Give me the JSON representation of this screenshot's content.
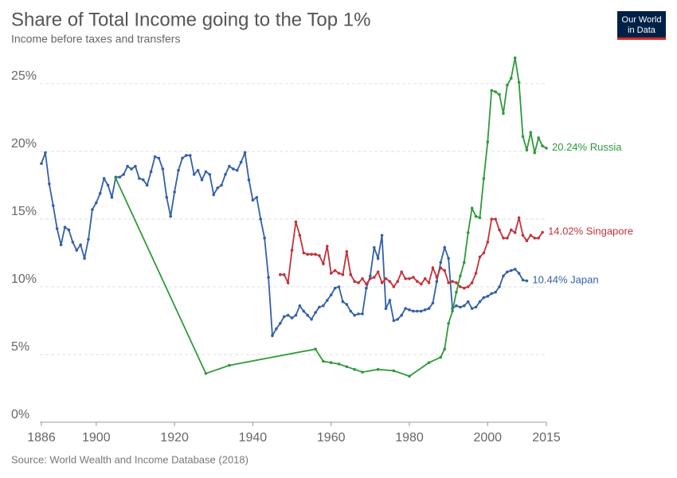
{
  "chart_data": {
    "type": "line",
    "title": "Share of Total Income going to the Top 1%",
    "subtitle": "Income before taxes and transfers",
    "source": "Source: World Wealth and Income Database (2018)",
    "logo": [
      "Our World",
      "in Data"
    ],
    "xlim": [
      1886,
      2015
    ],
    "xticks": [
      1886,
      1900,
      1920,
      1940,
      1960,
      1980,
      2000,
      2015
    ],
    "ylim": [
      0,
      27
    ],
    "yticks": [
      {
        "value": 0,
        "label": "0%"
      },
      {
        "value": 5,
        "label": "5%"
      },
      {
        "value": 10,
        "label": "10%"
      },
      {
        "value": 15,
        "label": "15%"
      },
      {
        "value": 20,
        "label": "20%"
      },
      {
        "value": 25,
        "label": "25%"
      }
    ],
    "grid": true,
    "series": [
      {
        "name": "Japan",
        "color": "#3360a9",
        "x": [
          1886,
          1887,
          1888,
          1889,
          1890,
          1891,
          1892,
          1893,
          1894,
          1895,
          1896,
          1897,
          1898,
          1899,
          1900,
          1901,
          1902,
          1903,
          1904,
          1905,
          1906,
          1907,
          1908,
          1909,
          1910,
          1911,
          1912,
          1913,
          1914,
          1915,
          1916,
          1917,
          1918,
          1919,
          1920,
          1921,
          1922,
          1923,
          1924,
          1925,
          1926,
          1927,
          1928,
          1929,
          1930,
          1931,
          1932,
          1933,
          1934,
          1935,
          1936,
          1937,
          1938,
          1939,
          1940,
          1941,
          1942,
          1943,
          1944,
          1945,
          1946,
          1947,
          1948,
          1949,
          1950,
          1951,
          1952,
          1953,
          1954,
          1955,
          1956,
          1957,
          1958,
          1959,
          1960,
          1961,
          1962,
          1963,
          1964,
          1965,
          1966,
          1967,
          1968,
          1969,
          1970,
          1971,
          1972,
          1973,
          1974,
          1975,
          1976,
          1977,
          1978,
          1979,
          1980,
          1981,
          1982,
          1983,
          1984,
          1985,
          1986,
          1987,
          1988,
          1989,
          1990,
          1991,
          1992,
          1993,
          1994,
          1995,
          1996,
          1997,
          1998,
          1999,
          2000,
          2001,
          2002,
          2003,
          2004,
          2005,
          2006,
          2007,
          2008,
          2009,
          2010
        ],
        "values": [
          19.1,
          19.9,
          17.6,
          16.0,
          14.3,
          13.1,
          14.4,
          14.2,
          13.3,
          12.7,
          13.1,
          12.1,
          13.5,
          15.7,
          16.2,
          16.9,
          18.0,
          17.5,
          16.6,
          18.1,
          18.1,
          18.3,
          18.9,
          18.7,
          18.9,
          18.0,
          17.9,
          17.5,
          18.5,
          19.6,
          19.5,
          18.7,
          16.6,
          15.2,
          17.0,
          18.6,
          19.5,
          19.7,
          19.7,
          18.3,
          18.6,
          17.9,
          18.5,
          18.3,
          16.8,
          17.3,
          17.5,
          18.3,
          18.9,
          18.7,
          18.6,
          19.2,
          19.9,
          17.9,
          16.4,
          16.6,
          15.0,
          13.6,
          10.7,
          6.4,
          6.9,
          7.3,
          7.8,
          7.9,
          7.7,
          7.9,
          8.6,
          8.2,
          7.9,
          7.6,
          8.1,
          8.5,
          8.6,
          9.0,
          9.4,
          9.9,
          10.0,
          8.9,
          8.7,
          8.2,
          7.9,
          8.0,
          8.0,
          9.9,
          10.8,
          12.9,
          12.1,
          13.8,
          8.4,
          9.0,
          7.5,
          7.6,
          7.9,
          8.4,
          8.3,
          8.2,
          8.2,
          8.2,
          8.3,
          8.4,
          8.8,
          10.4,
          11.8,
          12.9,
          12.1,
          8.4,
          8.6,
          8.5,
          8.6,
          8.9,
          8.4,
          8.5,
          8.9,
          9.2,
          9.3,
          9.5,
          9.6,
          10.0,
          10.8,
          11.1,
          11.2,
          11.3,
          11.0,
          10.5,
          10.44
        ],
        "end_label": "10.44%"
      },
      {
        "name": "Singapore",
        "color": "#c3323a",
        "x": [
          1947,
          1948,
          1949,
          1950,
          1951,
          1952,
          1953,
          1954,
          1955,
          1956,
          1957,
          1958,
          1959,
          1960,
          1961,
          1962,
          1963,
          1964,
          1965,
          1966,
          1967,
          1968,
          1969,
          1970,
          1971,
          1972,
          1973,
          1974,
          1975,
          1976,
          1977,
          1978,
          1979,
          1980,
          1981,
          1982,
          1983,
          1984,
          1985,
          1986,
          1987,
          1988,
          1989,
          1990,
          1991,
          1992,
          1993,
          1994,
          1995,
          1996,
          1997,
          1998,
          1999,
          2000,
          2001,
          2002,
          2003,
          2004,
          2005,
          2006,
          2007,
          2008,
          2009,
          2010,
          2011,
          2012,
          2013,
          2014
        ],
        "values": [
          10.9,
          10.9,
          10.3,
          12.7,
          14.8,
          13.8,
          12.5,
          12.4,
          12.4,
          12.4,
          12.3,
          11.7,
          13.0,
          11.0,
          11.2,
          11.0,
          10.9,
          12.6,
          10.9,
          10.4,
          10.3,
          10.6,
          10.2,
          10.6,
          10.7,
          11.1,
          10.3,
          10.6,
          10.4,
          10.0,
          10.4,
          11.1,
          10.6,
          10.6,
          10.7,
          10.4,
          10.2,
          10.6,
          10.3,
          11.4,
          10.7,
          11.4,
          11.2,
          10.3,
          10.4,
          10.3,
          10.0,
          9.9,
          10.0,
          10.3,
          11.0,
          12.2,
          12.5,
          13.3,
          15.0,
          15.0,
          14.2,
          13.6,
          13.6,
          14.2,
          14.0,
          15.1,
          13.8,
          13.4,
          13.8,
          13.6,
          13.6,
          14.02
        ],
        "end_label": "14.02%"
      },
      {
        "name": "Russia",
        "color": "#2e9b3a",
        "x": [
          1905,
          1928,
          1934,
          1956,
          1958,
          1960,
          1962,
          1964,
          1966,
          1968,
          1972,
          1976,
          1980,
          1985,
          1988,
          1989,
          1990,
          1991,
          1992,
          1993,
          1994,
          1995,
          1996,
          1997,
          1998,
          1999,
          2000,
          2001,
          2002,
          2003,
          2004,
          2005,
          2006,
          2007,
          2008,
          2009,
          2010,
          2011,
          2012,
          2013,
          2014,
          2015
        ],
        "values": [
          18.0,
          3.6,
          4.2,
          5.4,
          4.5,
          4.4,
          4.3,
          4.1,
          3.9,
          3.7,
          3.9,
          3.8,
          3.4,
          4.4,
          4.8,
          5.4,
          7.3,
          8.2,
          9.6,
          10.8,
          11.8,
          14.0,
          15.8,
          15.2,
          15.1,
          18.0,
          20.7,
          24.5,
          24.4,
          24.2,
          22.8,
          24.9,
          25.4,
          26.9,
          25.1,
          21.1,
          20.1,
          21.4,
          19.9,
          21.0,
          20.4,
          20.24
        ],
        "end_label": "20.24%"
      }
    ]
  }
}
